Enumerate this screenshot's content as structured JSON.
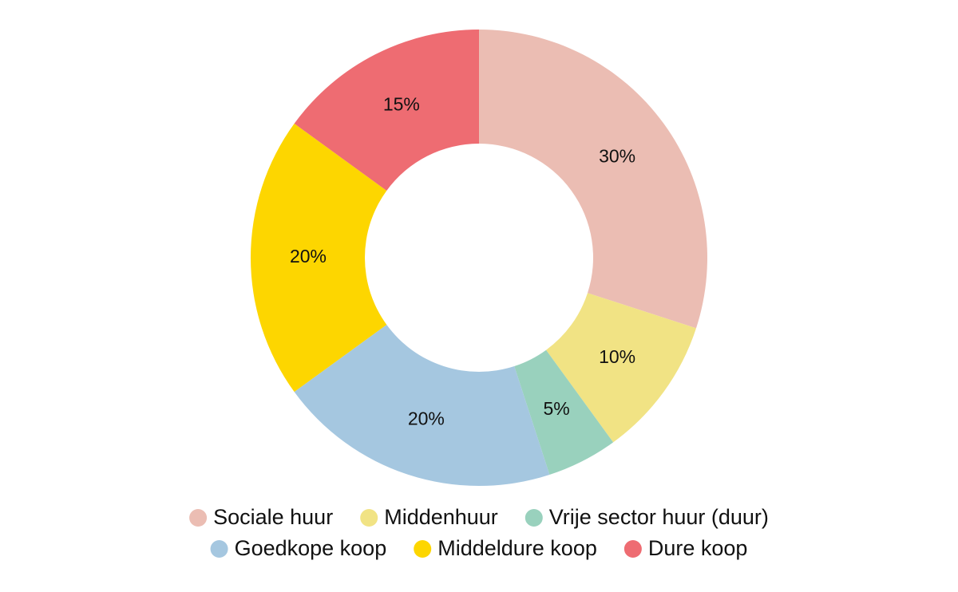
{
  "chart_data": {
    "type": "pie",
    "categories": [
      "Sociale huur",
      "Middenhuur",
      "Vrije sector huur (duur)",
      "Goedkope koop",
      "Middeldure koop",
      "Dure koop"
    ],
    "values": [
      30,
      10,
      5,
      20,
      20,
      15
    ],
    "value_labels": [
      "30%",
      "10%",
      "5%",
      "20%",
      "20%",
      "15%"
    ],
    "colors": [
      "#ebbdb3",
      "#f1e384",
      "#99d1bd",
      "#a5c7e0",
      "#fdd600",
      "#ee6c72"
    ],
    "legend": "bottom"
  }
}
